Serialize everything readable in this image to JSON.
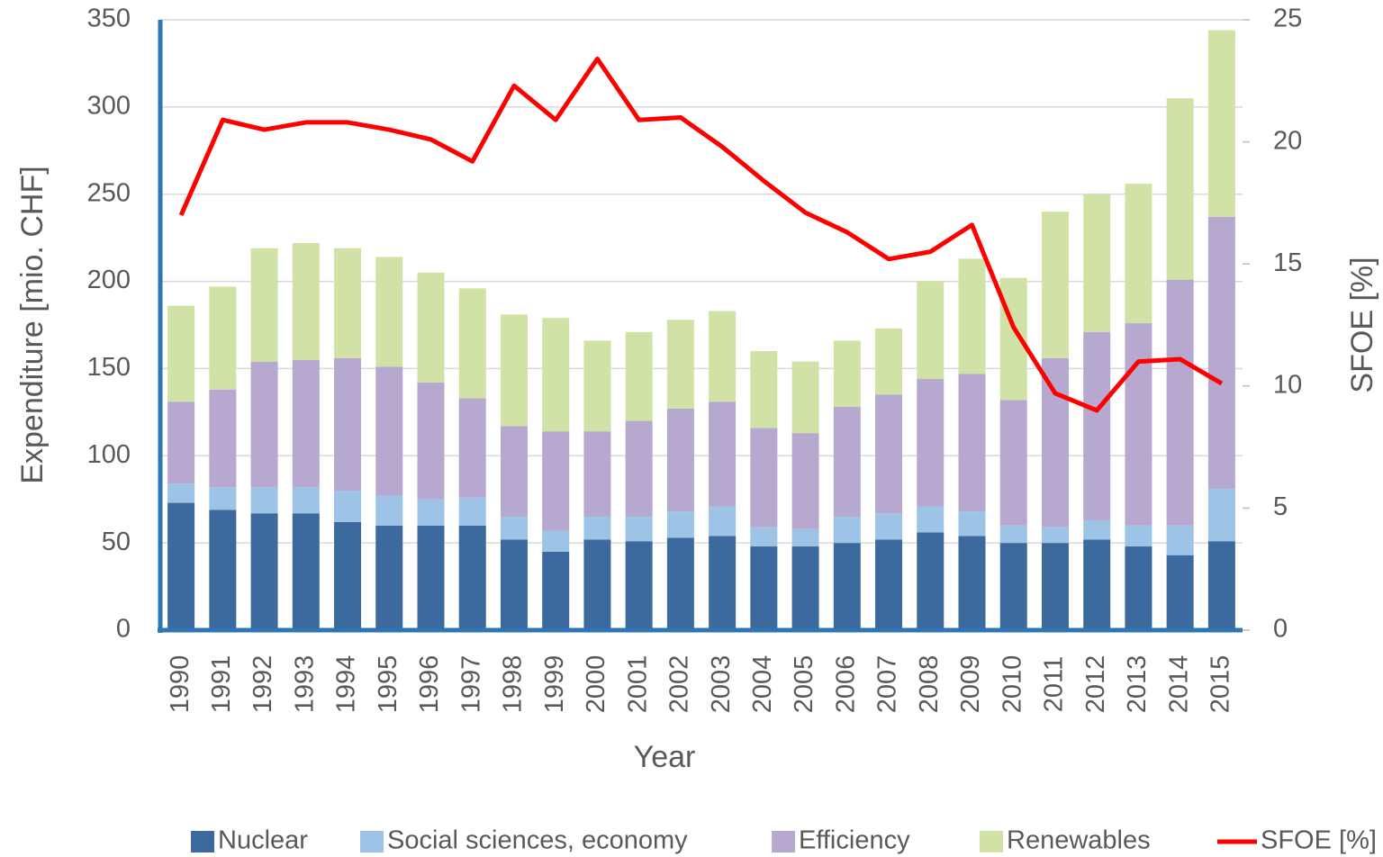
{
  "chart_data": {
    "type": "bar",
    "stacked": true,
    "x_label": "Year",
    "y_label": "Expenditure [mio. CHF]",
    "y2_label": "SFOE [%]",
    "categories": [
      "1990",
      "1991",
      "1992",
      "1993",
      "1994",
      "1995",
      "1996",
      "1997",
      "1998",
      "1999",
      "2000",
      "2001",
      "2002",
      "2003",
      "2004",
      "2005",
      "2006",
      "2007",
      "2008",
      "2009",
      "2010",
      "2011",
      "2012",
      "2013",
      "2014",
      "2015"
    ],
    "series": [
      {
        "name": "Nuclear",
        "type": "bar",
        "color": "#3d6a9e",
        "values": [
          73,
          69,
          67,
          67,
          62,
          60,
          60,
          60,
          52,
          45,
          52,
          51,
          53,
          54,
          48,
          48,
          50,
          52,
          56,
          54,
          50,
          50,
          52,
          48,
          43,
          51
        ]
      },
      {
        "name": "Social sciences, economy",
        "type": "bar",
        "color": "#9dc3e6",
        "values": [
          11,
          13,
          15,
          15,
          18,
          17,
          15,
          16,
          13,
          12,
          13,
          14,
          15,
          17,
          11,
          10,
          15,
          15,
          15,
          14,
          10,
          9,
          11,
          12,
          17,
          30
        ]
      },
      {
        "name": "Efficiency",
        "type": "bar",
        "color": "#b7a8cf",
        "values": [
          47,
          56,
          72,
          73,
          76,
          74,
          67,
          57,
          52,
          57,
          49,
          55,
          59,
          60,
          57,
          55,
          63,
          68,
          73,
          79,
          72,
          97,
          108,
          116,
          141,
          156
        ]
      },
      {
        "name": "Renewables",
        "type": "bar",
        "color": "#d0e2a6",
        "values": [
          55,
          59,
          65,
          67,
          63,
          63,
          63,
          63,
          64,
          65,
          52,
          51,
          51,
          52,
          44,
          41,
          38,
          38,
          56,
          66,
          70,
          84,
          79,
          80,
          104,
          107
        ]
      },
      {
        "name": "SFOE [%]",
        "type": "line",
        "axis": "y2",
        "color": "#ff0000",
        "values": [
          17.0,
          20.9,
          20.5,
          20.8,
          20.8,
          20.5,
          20.1,
          19.2,
          22.3,
          20.9,
          23.4,
          20.9,
          21.0,
          19.8,
          18.4,
          17.1,
          16.3,
          15.2,
          15.5,
          16.6,
          12.4,
          9.7,
          9.0,
          11.0,
          11.1,
          10.1
        ]
      }
    ],
    "ylim": [
      0,
      350
    ],
    "yticks": [
      0,
      50,
      100,
      150,
      200,
      250,
      300,
      350
    ],
    "y2lim": [
      0,
      25
    ],
    "y2ticks": [
      0,
      5,
      10,
      15,
      20,
      25
    ],
    "grid": true,
    "legend": "bottom"
  }
}
